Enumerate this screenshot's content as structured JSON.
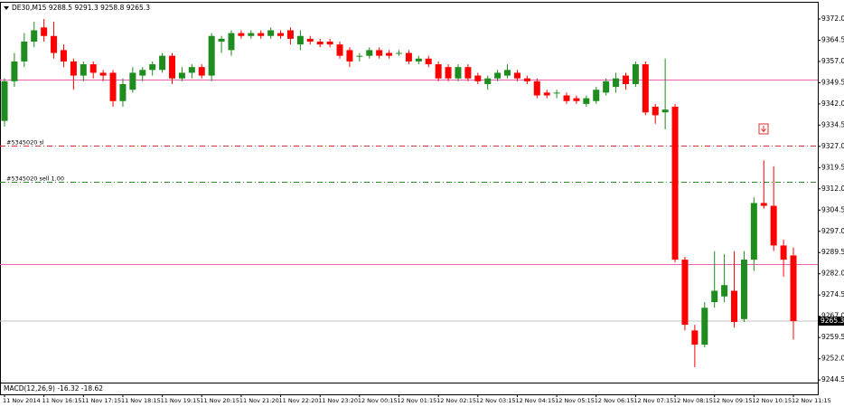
{
  "chart_data": {
    "type": "candlestick",
    "title": "DE30,M15  9288.5 9291.3 9258.8 9265.3",
    "categories": [
      "11 Nov 2014",
      null,
      null,
      null,
      "11 Nov 16:15",
      null,
      null,
      null,
      "11 Nov 17:15",
      null,
      null,
      null,
      "11 Nov 18:15",
      null,
      null,
      null,
      "11 Nov 19:15",
      null,
      null,
      null,
      "11 Nov 20:15",
      null,
      null,
      null,
      "11 Nov 21:20",
      null,
      null,
      null,
      "11 Nov 22:20",
      null,
      null,
      null,
      "11 Nov 23:20",
      null,
      null,
      null,
      "12 Nov 00:15",
      null,
      null,
      null,
      "12 Nov 01:15",
      null,
      null,
      null,
      "12 Nov 02:15",
      null,
      null,
      null,
      "12 Nov 03:15",
      null,
      null,
      null,
      "12 Nov 04:15",
      null,
      null,
      null,
      "12 Nov 05:15",
      null,
      null,
      null,
      "12 Nov 06:15",
      null,
      null,
      null,
      "12 Nov 07:15",
      null,
      null,
      null,
      "12 Nov 08:15",
      null,
      null,
      null,
      "12 Nov 09:15",
      null,
      null,
      null,
      "12 Nov 10:15",
      null,
      null,
      null,
      "12 Nov 11:15"
    ],
    "open": [
      9336,
      9350,
      9357,
      9364,
      9369,
      9366,
      9361,
      9357,
      9352,
      9356,
      9353,
      9353,
      9343,
      9347,
      9352,
      9354,
      9354,
      9359,
      9351,
      9353,
      9355,
      9352,
      9364,
      9361,
      9367,
      9366,
      9367,
      9366,
      9367,
      9368,
      9363,
      9365,
      9364,
      9364,
      9363,
      9361,
      9359,
      9359,
      9361,
      9360,
      9360,
      9360,
      9357,
      9358,
      9356,
      9355,
      9351,
      9355,
      9352,
      9349,
      9351,
      9352,
      9353,
      9351,
      9350,
      9346,
      9346,
      9345,
      9344,
      9342,
      9343,
      9346,
      9348,
      9352,
      9349,
      9356,
      9341,
      9339,
      9341,
      9287,
      9262,
      9257,
      9272,
      9274,
      9276,
      9266,
      9287,
      9307,
      9306,
      9292,
      9288.5
    ],
    "high": [
      9351,
      9360,
      9367,
      9371,
      9372,
      9371,
      9363,
      9358,
      9357,
      9357,
      9354,
      9354,
      9351,
      9355,
      9355,
      9357,
      9360,
      9360,
      9355,
      9356,
      9356,
      9367,
      9366,
      9368,
      9368,
      9368,
      9368,
      9369,
      9368,
      9369,
      9368,
      9366,
      9365,
      9365,
      9364,
      9362,
      9360,
      9362,
      9362,
      9361,
      9361,
      9361,
      9359,
      9359,
      9357,
      9356,
      9356,
      9356,
      9353,
      9352,
      9354,
      9356,
      9354,
      9352,
      9351,
      9347,
      9347,
      9346,
      9345,
      9345,
      9348,
      9351,
      9353,
      9353,
      9357,
      9357,
      9342,
      9358,
      9342,
      9288,
      9264,
      9272,
      9290,
      9289,
      9290,
      9290,
      9309,
      9322,
      9320,
      9294,
      9291.3
    ],
    "low": [
      9334,
      9348,
      9355,
      9362,
      9364,
      9358,
      9355,
      9347,
      9350,
      9351,
      9350,
      9341,
      9341,
      9346,
      9350,
      9352,
      9353,
      9349,
      9350,
      9351,
      9351,
      9350,
      9360,
      9359,
      9365,
      9365,
      9365,
      9365,
      9365,
      9363,
      9361,
      9363,
      9362,
      9362,
      9358,
      9355,
      9357,
      9358,
      9358,
      9358,
      9359,
      9356,
      9356,
      9355,
      9350,
      9350,
      9350,
      9350,
      9349,
      9347,
      9350,
      9351,
      9350,
      9349,
      9344,
      9344,
      9344,
      9342,
      9342,
      9341,
      9342,
      9345,
      9346,
      9347,
      9348,
      9338,
      9335,
      9333,
      9286,
      9262,
      9249,
      9256,
      9270,
      9272,
      9263,
      9265,
      9283,
      9305,
      9290,
      9281,
      9258.8
    ],
    "close": [
      9350,
      9357,
      9364,
      9368,
      9366,
      9360,
      9357,
      9352,
      9356,
      9353,
      9352,
      9343,
      9349,
      9353,
      9354,
      9356,
      9359,
      9351,
      9353,
      9355,
      9352,
      9366,
      9365,
      9367,
      9366,
      9367,
      9366,
      9368,
      9366,
      9365,
      9366,
      9364,
      9363,
      9363,
      9359,
      9357,
      9359,
      9361,
      9359,
      9359,
      9360,
      9357,
      9358,
      9356,
      9351,
      9351,
      9355,
      9351,
      9350,
      9351,
      9353,
      9354,
      9351,
      9350,
      9345,
      9345,
      9346,
      9343,
      9343,
      9344,
      9347,
      9350,
      9351,
      9349,
      9356,
      9339,
      9338,
      9340,
      9287,
      9264,
      9257,
      9270,
      9276,
      9278,
      9265,
      9287,
      9307,
      9306,
      9292,
      9287,
      9265.3
    ],
    "up_color": "#1e8c1e",
    "down_color": "#ff0000",
    "ylim": [
      9243.9,
      9377.1
    ],
    "yticks": [
      {
        "value": 9372,
        "label": "9372.0"
      },
      {
        "value": 9364.5,
        "label": "9364.5"
      },
      {
        "value": 9357,
        "label": "9357.0"
      },
      {
        "value": 9349.5,
        "label": "9349.5"
      },
      {
        "value": 9342,
        "label": "9342.0"
      },
      {
        "value": 9334.5,
        "label": "9334.5"
      },
      {
        "value": 9327,
        "label": "9327.0"
      },
      {
        "value": 9319.5,
        "label": "9319.5"
      },
      {
        "value": 9312,
        "label": "9312.0"
      },
      {
        "value": 9304.5,
        "label": "9304.5"
      },
      {
        "value": 9297,
        "label": "9297.0"
      },
      {
        "value": 9289.5,
        "label": "9289.5"
      },
      {
        "value": 9282,
        "label": "9282.0"
      },
      {
        "value": 9274.5,
        "label": "9274.5"
      },
      {
        "value": 9267,
        "label": "9267.0"
      },
      {
        "value": 9259.5,
        "label": "9259.5"
      },
      {
        "value": 9252,
        "label": "9252.0"
      },
      {
        "value": 9244.5,
        "label": "9244.5"
      }
    ],
    "hlines": [
      {
        "value": 9350.6,
        "color": "#f060b0",
        "style": "solid"
      },
      {
        "value": 9285.5,
        "color": "#f060b0",
        "style": "solid"
      },
      {
        "value": 9327.3,
        "color": "#d03030",
        "style": "dashdot",
        "label": "#5345020 sl"
      },
      {
        "value": 9314.5,
        "color": "#2a8a2a",
        "style": "dashdot",
        "label": "#5345020 sell 1.00"
      }
    ],
    "macd_label": "MACD(12,26,9) -16.32 -18.62"
  }
}
